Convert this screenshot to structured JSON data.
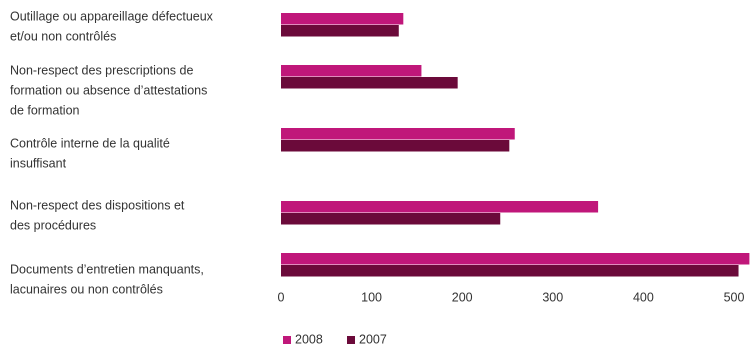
{
  "chart_data": {
    "type": "hbar",
    "categories": [
      [
        "Outillage ou appareillage défectueux",
        "et/ou non contrôlés"
      ],
      [
        "Non-respect des prescriptions de",
        "formation ou absence d’attestations",
        "de formation"
      ],
      [
        "Contrôle interne de la qualité",
        "insuffisant"
      ],
      [
        "Non-respect des dispositions et",
        "des procédures"
      ],
      [
        "Documents d’entretien manquants,",
        "lacunaires ou non contrôlés"
      ]
    ],
    "series": [
      {
        "name": "2008",
        "color": "#c0177a",
        "values": [
          135,
          155,
          258,
          350,
          517
        ]
      },
      {
        "name": "2007",
        "color": "#6b0a3a",
        "values": [
          130,
          195,
          252,
          242,
          505
        ]
      }
    ],
    "xlim": [
      0,
      500
    ],
    "xticks": [
      0,
      100,
      200,
      300,
      400,
      500
    ],
    "grid": false
  }
}
